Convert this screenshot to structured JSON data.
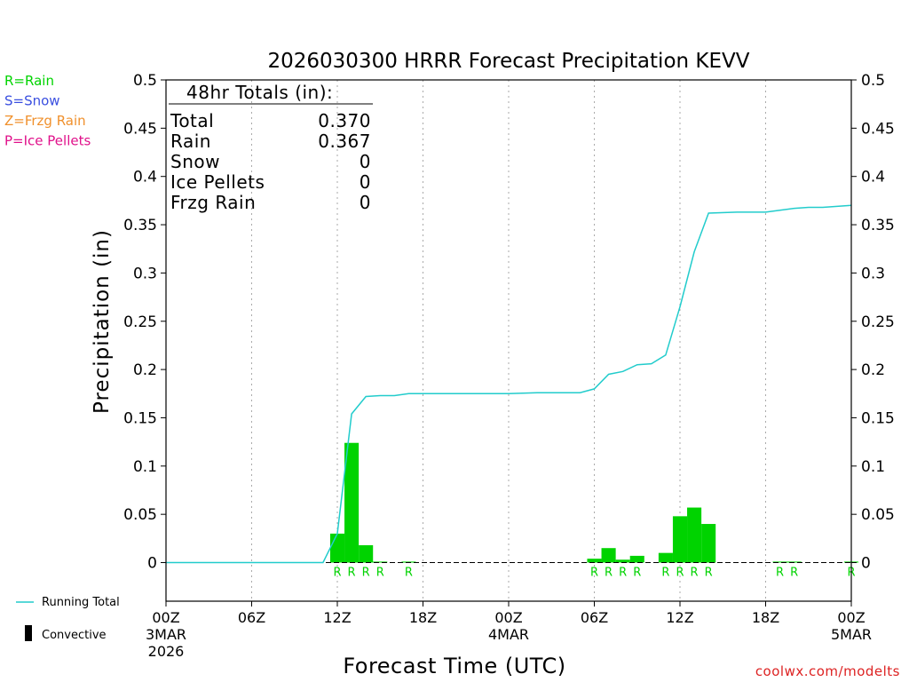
{
  "chart_data": {
    "type": "bar",
    "title": "2026030300 HRRR Forecast Precipitation KEVV",
    "xlabel": "Forecast Time (UTC)",
    "ylabel": "Precipitation (in)",
    "ylim": [
      -0.04,
      0.5
    ],
    "xlim": [
      0,
      48
    ],
    "y_ticks": [
      "0.5",
      "0.45",
      "0.4",
      "0.35",
      "0.3",
      "0.25",
      "0.2",
      "0.15",
      "0.1",
      "0.05",
      "0"
    ],
    "x_ticks": [
      {
        "hour": 0,
        "label": "00Z",
        "date": "3MAR",
        "year": "2026"
      },
      {
        "hour": 6,
        "label": "06Z",
        "date": "",
        "year": ""
      },
      {
        "hour": 12,
        "label": "12Z",
        "date": "",
        "year": ""
      },
      {
        "hour": 18,
        "label": "18Z",
        "date": "",
        "year": ""
      },
      {
        "hour": 24,
        "label": "00Z",
        "date": "4MAR",
        "year": ""
      },
      {
        "hour": 30,
        "label": "06Z",
        "date": "",
        "year": ""
      },
      {
        "hour": 36,
        "label": "12Z",
        "date": "",
        "year": ""
      },
      {
        "hour": 42,
        "label": "18Z",
        "date": "",
        "year": ""
      },
      {
        "hour": 48,
        "label": "00Z",
        "date": "5MAR",
        "year": ""
      }
    ],
    "bars": [
      {
        "hour": 12,
        "value": 0.03
      },
      {
        "hour": 13,
        "value": 0.124
      },
      {
        "hour": 14,
        "value": 0.018
      },
      {
        "hour": 15,
        "value": 0.001
      },
      {
        "hour": 17,
        "value": 0.001
      },
      {
        "hour": 30,
        "value": 0.004
      },
      {
        "hour": 31,
        "value": 0.015
      },
      {
        "hour": 32,
        "value": 0.003
      },
      {
        "hour": 33,
        "value": 0.007
      },
      {
        "hour": 35,
        "value": 0.01
      },
      {
        "hour": 36,
        "value": 0.048
      },
      {
        "hour": 37,
        "value": 0.057
      },
      {
        "hour": 38,
        "value": 0.04
      },
      {
        "hour": 43,
        "value": 0.001
      },
      {
        "hour": 44,
        "value": 0.001
      },
      {
        "hour": 48,
        "value": 0.001
      }
    ],
    "precip_type_marks": [
      {
        "hour": 12,
        "label": "R"
      },
      {
        "hour": 13,
        "label": "R"
      },
      {
        "hour": 14,
        "label": "R"
      },
      {
        "hour": 15,
        "label": "R"
      },
      {
        "hour": 17,
        "label": "R"
      },
      {
        "hour": 30,
        "label": "R"
      },
      {
        "hour": 31,
        "label": "R"
      },
      {
        "hour": 32,
        "label": "R"
      },
      {
        "hour": 33,
        "label": "R"
      },
      {
        "hour": 35,
        "label": "R"
      },
      {
        "hour": 36,
        "label": "R"
      },
      {
        "hour": 37,
        "label": "R"
      },
      {
        "hour": 38,
        "label": "R"
      },
      {
        "hour": 43,
        "label": "R"
      },
      {
        "hour": 44,
        "label": "R"
      },
      {
        "hour": 48,
        "label": "R"
      }
    ],
    "running_total": {
      "name": "Running Total",
      "x": [
        0,
        11,
        12,
        13,
        14,
        15,
        16,
        17,
        20,
        24,
        26,
        29,
        30,
        31,
        32,
        33,
        34,
        35,
        36,
        37,
        38,
        40,
        41,
        42,
        43,
        44,
        45,
        46,
        47,
        48
      ],
      "y": [
        0,
        0,
        0.03,
        0.154,
        0.172,
        0.173,
        0.173,
        0.175,
        0.175,
        0.175,
        0.176,
        0.176,
        0.18,
        0.195,
        0.198,
        0.205,
        0.206,
        0.215,
        0.265,
        0.322,
        0.362,
        0.363,
        0.363,
        0.363,
        0.365,
        0.367,
        0.368,
        0.368,
        0.369,
        0.37
      ]
    },
    "colors": {
      "bars": "#00d300",
      "line": "#22cccc",
      "axis": "#000000",
      "grid": "#aaaaaa",
      "rain": "#00d300"
    }
  },
  "totals_box": {
    "title": "48hr Totals (in):",
    "rows": [
      {
        "label": "Total",
        "value": "0.370"
      },
      {
        "label": "Rain",
        "value": "0.367"
      },
      {
        "label": "Snow",
        "value": "0"
      },
      {
        "label": "Ice Pellets",
        "value": "0"
      },
      {
        "label": "Frzg Rain",
        "value": "0"
      }
    ]
  },
  "type_legend": [
    {
      "label": "R=Rain",
      "color": "#00d300"
    },
    {
      "label": "S=Snow",
      "color": "#3a4fe0"
    },
    {
      "label": "Z=Frzg Rain",
      "color": "#f0902c"
    },
    {
      "label": "P=Ice Pellets",
      "color": "#e0108a"
    }
  ],
  "legend": {
    "running_total": "Running Total",
    "convective": "Convective"
  },
  "credit": "coolwx.com/modelts"
}
